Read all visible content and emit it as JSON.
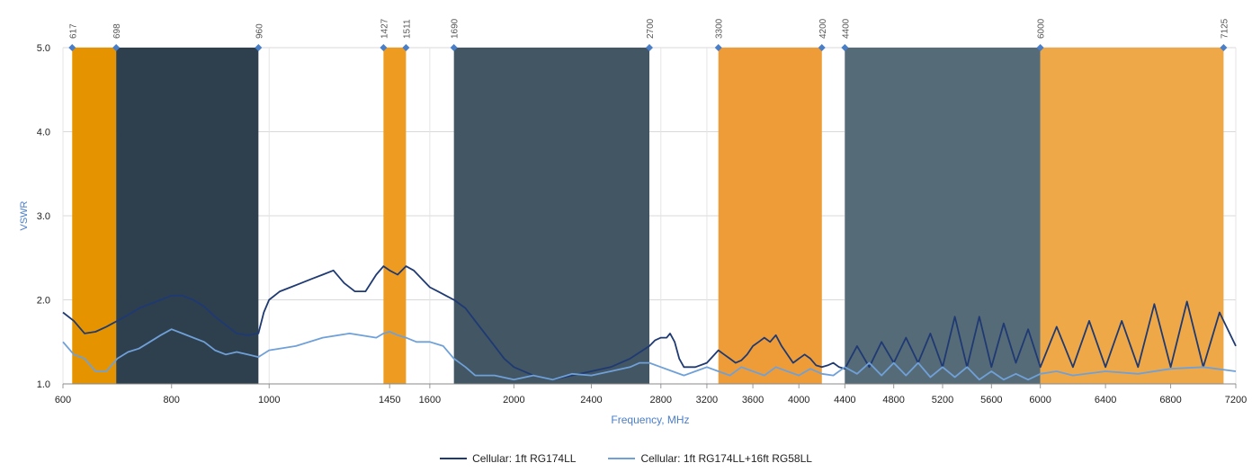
{
  "chart_data": {
    "type": "line",
    "title": "",
    "xlabel": "Frequency, MHz",
    "ylabel": "VSWR",
    "ylim": [
      1.0,
      5.0
    ],
    "yticks": [
      "1.0",
      "2.0",
      "3.0",
      "4.0",
      "5.0"
    ],
    "grid": true,
    "legend_position": "bottom",
    "x_segments": [
      {
        "from": 600,
        "to": 960,
        "ticks": [
          600,
          800
        ]
      },
      {
        "from": 960,
        "to": 1690,
        "ticks": [
          1000,
          1450,
          1600
        ]
      },
      {
        "from": 1690,
        "to": 2700,
        "ticks": [
          2000,
          2400
        ]
      },
      {
        "from": 2700,
        "to": 4400,
        "ticks": [
          2800,
          3200,
          3600,
          4000,
          4400
        ]
      },
      {
        "from": 4400,
        "to": 6000,
        "ticks": [
          4800,
          5200,
          5600,
          6000
        ]
      },
      {
        "from": 6000,
        "to": 7200,
        "ticks": [
          6400,
          6800,
          7200
        ]
      }
    ],
    "x_tick_labels": [
      "600",
      "800",
      "1000",
      "1450",
      "1600",
      "2000",
      "2400",
      "2800",
      "3200",
      "3600",
      "4000",
      "4400",
      "4800",
      "5200",
      "5600",
      "6000",
      "6400",
      "6800",
      "7200"
    ],
    "bands": [
      {
        "from": 617,
        "to": 698,
        "color": "#E59400"
      },
      {
        "from": 698,
        "to": 960,
        "color": "#2E3F4D"
      },
      {
        "from": 1427,
        "to": 1511,
        "color": "#EE9B22"
      },
      {
        "from": 1690,
        "to": 2700,
        "color": "#425664"
      },
      {
        "from": 3300,
        "to": 4200,
        "color": "#EE9C38"
      },
      {
        "from": 4400,
        "to": 6000,
        "color": "#566B78"
      },
      {
        "from": 6000,
        "to": 7125,
        "color": "#EEA848"
      }
    ],
    "band_edge_labels": [
      "617",
      "698",
      "960",
      "1427",
      "1511",
      "1690",
      "2700",
      "3300",
      "4200",
      "4400",
      "6000",
      "7125"
    ],
    "series": [
      {
        "name": "Cellular: 1ft RG174LL",
        "color": "#1F3A73",
        "x": [
          600,
          620,
          640,
          660,
          680,
          700,
          720,
          740,
          760,
          780,
          800,
          820,
          840,
          860,
          880,
          900,
          920,
          940,
          960,
          980,
          1000,
          1040,
          1080,
          1120,
          1160,
          1200,
          1240,
          1280,
          1320,
          1360,
          1400,
          1427,
          1450,
          1480,
          1511,
          1540,
          1570,
          1600,
          1630,
          1660,
          1690,
          1750,
          1800,
          1850,
          1900,
          1950,
          2000,
          2100,
          2200,
          2300,
          2400,
          2500,
          2600,
          2700,
          2750,
          2800,
          2850,
          2880,
          2920,
          2960,
          3000,
          3100,
          3200,
          3300,
          3350,
          3400,
          3450,
          3500,
          3550,
          3600,
          3650,
          3700,
          3750,
          3800,
          3850,
          3900,
          3950,
          4000,
          4050,
          4100,
          4150,
          4200,
          4250,
          4300,
          4350,
          4400,
          4500,
          4600,
          4700,
          4800,
          4900,
          5000,
          5100,
          5200,
          5300,
          5400,
          5500,
          5600,
          5700,
          5800,
          5900,
          6000,
          6100,
          6200,
          6300,
          6400,
          6500,
          6600,
          6700,
          6800,
          6900,
          7000,
          7100,
          7200
        ],
        "values": [
          1.85,
          1.75,
          1.6,
          1.62,
          1.68,
          1.75,
          1.82,
          1.9,
          1.95,
          2.0,
          2.05,
          2.05,
          2.0,
          1.92,
          1.8,
          1.7,
          1.6,
          1.58,
          1.6,
          1.85,
          2.0,
          2.1,
          2.15,
          2.2,
          2.25,
          2.3,
          2.35,
          2.2,
          2.1,
          2.1,
          2.3,
          2.4,
          2.35,
          2.3,
          2.4,
          2.35,
          2.25,
          2.15,
          2.1,
          2.05,
          2.0,
          1.9,
          1.75,
          1.6,
          1.45,
          1.3,
          1.2,
          1.1,
          1.05,
          1.1,
          1.15,
          1.2,
          1.3,
          1.45,
          1.52,
          1.55,
          1.55,
          1.6,
          1.5,
          1.3,
          1.2,
          1.2,
          1.25,
          1.4,
          1.35,
          1.3,
          1.25,
          1.28,
          1.35,
          1.45,
          1.5,
          1.55,
          1.5,
          1.58,
          1.45,
          1.35,
          1.25,
          1.3,
          1.35,
          1.3,
          1.22,
          1.2,
          1.22,
          1.25,
          1.2,
          1.18,
          1.45,
          1.2,
          1.5,
          1.25,
          1.55,
          1.25,
          1.6,
          1.2,
          1.8,
          1.2,
          1.8,
          1.2,
          1.72,
          1.25,
          1.65,
          1.2,
          1.68,
          1.2,
          1.75,
          1.2,
          1.75,
          1.2,
          1.95,
          1.2,
          1.98,
          1.2,
          1.85,
          1.45
        ]
      },
      {
        "name": "Cellular: 1ft RG174LL+16ft RG58LL",
        "color": "#6FA0D8",
        "x": [
          600,
          620,
          640,
          660,
          680,
          700,
          720,
          740,
          760,
          780,
          800,
          820,
          840,
          860,
          880,
          900,
          920,
          940,
          960,
          1000,
          1100,
          1200,
          1300,
          1400,
          1427,
          1450,
          1480,
          1511,
          1550,
          1600,
          1650,
          1690,
          1750,
          1800,
          1900,
          2000,
          2100,
          2200,
          2300,
          2400,
          2500,
          2600,
          2650,
          2700,
          2800,
          2900,
          3000,
          3100,
          3200,
          3300,
          3400,
          3500,
          3600,
          3700,
          3800,
          3900,
          4000,
          4100,
          4200,
          4300,
          4400,
          4500,
          4600,
          4700,
          4800,
          4900,
          5000,
          5100,
          5200,
          5300,
          5400,
          5500,
          5600,
          5700,
          5800,
          5900,
          6000,
          6100,
          6200,
          6400,
          6600,
          6800,
          7000,
          7200
        ],
        "values": [
          1.5,
          1.35,
          1.3,
          1.15,
          1.15,
          1.3,
          1.38,
          1.42,
          1.5,
          1.58,
          1.65,
          1.6,
          1.55,
          1.5,
          1.4,
          1.35,
          1.38,
          1.35,
          1.32,
          1.4,
          1.45,
          1.55,
          1.6,
          1.55,
          1.6,
          1.62,
          1.58,
          1.55,
          1.5,
          1.5,
          1.45,
          1.3,
          1.2,
          1.1,
          1.1,
          1.05,
          1.1,
          1.05,
          1.12,
          1.1,
          1.15,
          1.2,
          1.25,
          1.25,
          1.2,
          1.15,
          1.1,
          1.15,
          1.2,
          1.15,
          1.1,
          1.2,
          1.15,
          1.1,
          1.2,
          1.15,
          1.1,
          1.18,
          1.12,
          1.1,
          1.2,
          1.12,
          1.25,
          1.1,
          1.25,
          1.1,
          1.25,
          1.08,
          1.2,
          1.08,
          1.2,
          1.05,
          1.15,
          1.05,
          1.12,
          1.05,
          1.12,
          1.15,
          1.1,
          1.15,
          1.12,
          1.18,
          1.2,
          1.15
        ]
      }
    ]
  }
}
